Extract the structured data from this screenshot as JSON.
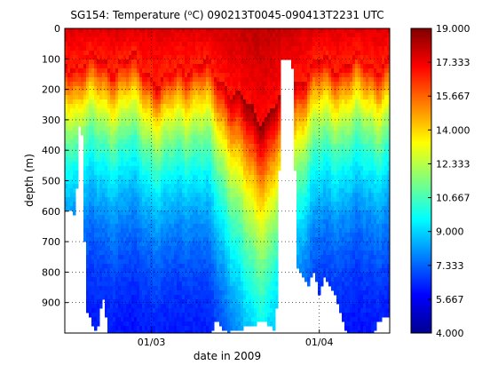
{
  "chart_data": {
    "type": "heatmap",
    "title": {
      "prefix": "SG154: Temperature (",
      "superscript": "o",
      "suffix": "C) 090213T0045-090413T2231 UTC"
    },
    "xlabel": "date in 2009",
    "ylabel": "depth (m)",
    "x_range": [
      "2009-02-13",
      "2009-04-14"
    ],
    "y_range": [
      0,
      1000
    ],
    "y_reversed": true,
    "x_ticks": [
      {
        "date": "2009-03-01",
        "label": "01/03"
      },
      {
        "date": "2009-04-01",
        "label": "01/04"
      }
    ],
    "y_ticks": [
      0,
      100,
      200,
      300,
      400,
      500,
      600,
      700,
      800,
      900
    ],
    "grid": "dotted",
    "colormap": "jet",
    "colorbar": {
      "range": [
        4,
        19
      ],
      "ticks": [
        "4.000",
        "5.667",
        "7.333",
        "9.000",
        "10.667",
        "12.333",
        "14.000",
        "15.667",
        "17.333",
        "19.000"
      ]
    },
    "profile_max_depth": [
      {
        "date": "2009-02-13",
        "depth": 590
      },
      {
        "date": "2009-02-15",
        "depth": 610
      },
      {
        "date": "2009-02-16",
        "depth": 205
      },
      {
        "date": "2009-02-17",
        "depth": 930
      },
      {
        "date": "2009-02-19",
        "depth": 1000
      },
      {
        "date": "2009-02-20",
        "depth": 880
      },
      {
        "date": "2009-02-21",
        "depth": 1000
      },
      {
        "date": "2009-03-12",
        "depth": 1000
      },
      {
        "date": "2009-03-13",
        "depth": 960
      },
      {
        "date": "2009-03-15",
        "depth": 1000
      },
      {
        "date": "2009-03-22",
        "depth": 960
      },
      {
        "date": "2009-03-24",
        "depth": 1000
      },
      {
        "date": "2009-03-25",
        "depth": 100
      },
      {
        "date": "2009-03-27",
        "depth": 100
      },
      {
        "date": "2009-03-28",
        "depth": 790
      },
      {
        "date": "2009-03-30",
        "depth": 840
      },
      {
        "date": "2009-03-31",
        "depth": 800
      },
      {
        "date": "2009-04-01",
        "depth": 870
      },
      {
        "date": "2009-04-02",
        "depth": 820
      },
      {
        "date": "2009-04-04",
        "depth": 880
      },
      {
        "date": "2009-04-06",
        "depth": 1000
      },
      {
        "date": "2009-04-11",
        "depth": 1000
      },
      {
        "date": "2009-04-12",
        "depth": 960
      },
      {
        "date": "2009-04-14",
        "depth": 940
      }
    ],
    "gaps": [
      {
        "start": "2009-03-25",
        "end": "2009-03-27",
        "below_depth": 100
      }
    ]
  }
}
